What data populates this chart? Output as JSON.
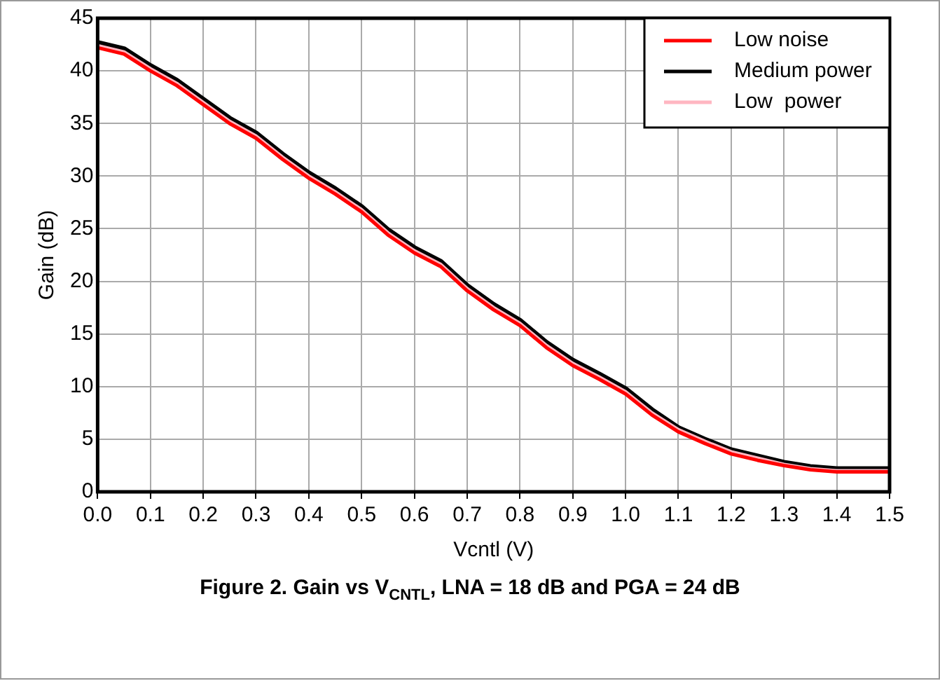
{
  "chart_data": {
    "type": "line",
    "title": "Figure 2. Gain vs V$_{CNTL}$, LNA = 18 dB and PGA = 24 dB",
    "xlabel": "Vcntl (V)",
    "ylabel": "Gain (dB)",
    "x": [
      0,
      0.05,
      0.1,
      0.15,
      0.2,
      0.25,
      0.3,
      0.35,
      0.4,
      0.45,
      0.5,
      0.55,
      0.6,
      0.65,
      0.7,
      0.75,
      0.8,
      0.85,
      0.9,
      0.95,
      1.0,
      1.05,
      1.1,
      1.15,
      1.2,
      1.25,
      1.3,
      1.35,
      1.4,
      1.45,
      1.5
    ],
    "series": [
      {
        "name": "Low noise",
        "color": "#ff0000",
        "values": [
          42.2,
          41.6,
          40.0,
          38.6,
          36.8,
          35.0,
          33.6,
          31.6,
          29.8,
          28.3,
          26.6,
          24.4,
          22.7,
          21.4,
          19.1,
          17.3,
          15.8,
          13.7,
          12.0,
          10.7,
          9.3,
          7.3,
          5.7,
          4.6,
          3.6,
          3.0,
          2.5,
          2.1,
          1.9,
          1.9,
          1.9
        ]
      },
      {
        "name": "Medium power",
        "color": "#000000",
        "values": [
          42.7,
          42.1,
          40.5,
          39.1,
          37.3,
          35.5,
          34.1,
          32.1,
          30.3,
          28.8,
          27.1,
          24.9,
          23.2,
          21.9,
          19.6,
          17.8,
          16.3,
          14.2,
          12.5,
          11.2,
          9.8,
          7.8,
          6.1,
          5.0,
          4.0,
          3.4,
          2.8,
          2.4,
          2.2,
          2.2,
          2.2
        ]
      },
      {
        "name": "Low  power",
        "color": "#ffb6c1",
        "values": [
          42.4,
          41.8,
          40.2,
          38.8,
          37.0,
          35.2,
          33.8,
          31.8,
          30.0,
          28.5,
          26.8,
          24.6,
          22.9,
          21.6,
          19.3,
          17.5,
          16.0,
          13.9,
          12.2,
          10.9,
          9.5,
          7.5,
          5.9,
          4.8,
          3.8,
          3.2,
          2.6,
          2.2,
          2.0,
          2.0,
          2.0
        ]
      }
    ],
    "xlim": [
      0,
      1.5
    ],
    "xticks": [
      {
        "value": 0,
        "label": "0.0"
      },
      {
        "value": 0.1,
        "label": "0.1"
      },
      {
        "value": 0.2,
        "label": "0.2"
      },
      {
        "value": 0.3,
        "label": "0.3"
      },
      {
        "value": 0.4,
        "label": "0.4"
      },
      {
        "value": 0.5,
        "label": "0.5"
      },
      {
        "value": 0.6,
        "label": "0.6"
      },
      {
        "value": 0.7,
        "label": "0.7"
      },
      {
        "value": 0.8,
        "label": "0.8"
      },
      {
        "value": 0.9,
        "label": "0.9"
      },
      {
        "value": 1,
        "label": "1.0"
      },
      {
        "value": 1.1,
        "label": "1.1"
      },
      {
        "value": 1.2,
        "label": "1.2"
      },
      {
        "value": 1.3,
        "label": "1.3"
      },
      {
        "value": 1.4,
        "label": "1.4"
      },
      {
        "value": 1.5,
        "label": "1.5"
      }
    ],
    "ylim": [
      0,
      45
    ],
    "yticks": [
      0,
      5,
      10,
      15,
      20,
      25,
      30,
      35,
      40,
      45
    ],
    "grid": true,
    "legend": "top right",
    "marker": "none",
    "line_style": "solid"
  }
}
